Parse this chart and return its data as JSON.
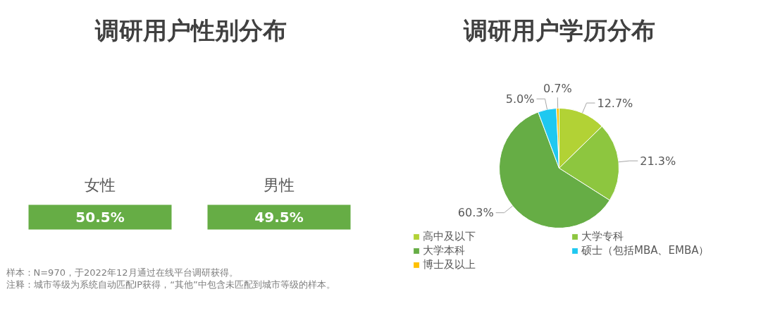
{
  "chart_data": [
    {
      "type": "other",
      "title": "调研用户性别分布",
      "categories": [
        "女性",
        "男性"
      ],
      "values": [
        50.5,
        49.5
      ],
      "value_labels": [
        "50.5%",
        "49.5%"
      ],
      "color": "#66ad45",
      "annotations": [
        "样本：N=970，于2022年12月通过在线平台调研获得。",
        "注释：城市等级为系统自动匹配IP获得，“其他”中包含未匹配到城市等级的样本。"
      ]
    },
    {
      "type": "pie",
      "title": "调研用户学历分布",
      "categories": [
        "高中及以下",
        "大学专科",
        "大学本科",
        "硕士（包括MBA、EMBA）",
        "博士及以上"
      ],
      "values": [
        12.7,
        21.3,
        60.3,
        5.0,
        0.7
      ],
      "value_labels": [
        "12.7%",
        "21.3%",
        "60.3%",
        "5.0%",
        "0.7%"
      ],
      "colors": [
        "#b2d235",
        "#8dc63f",
        "#66ad45",
        "#1fc8f0",
        "#ffc000"
      ],
      "legend": "bottom"
    }
  ]
}
